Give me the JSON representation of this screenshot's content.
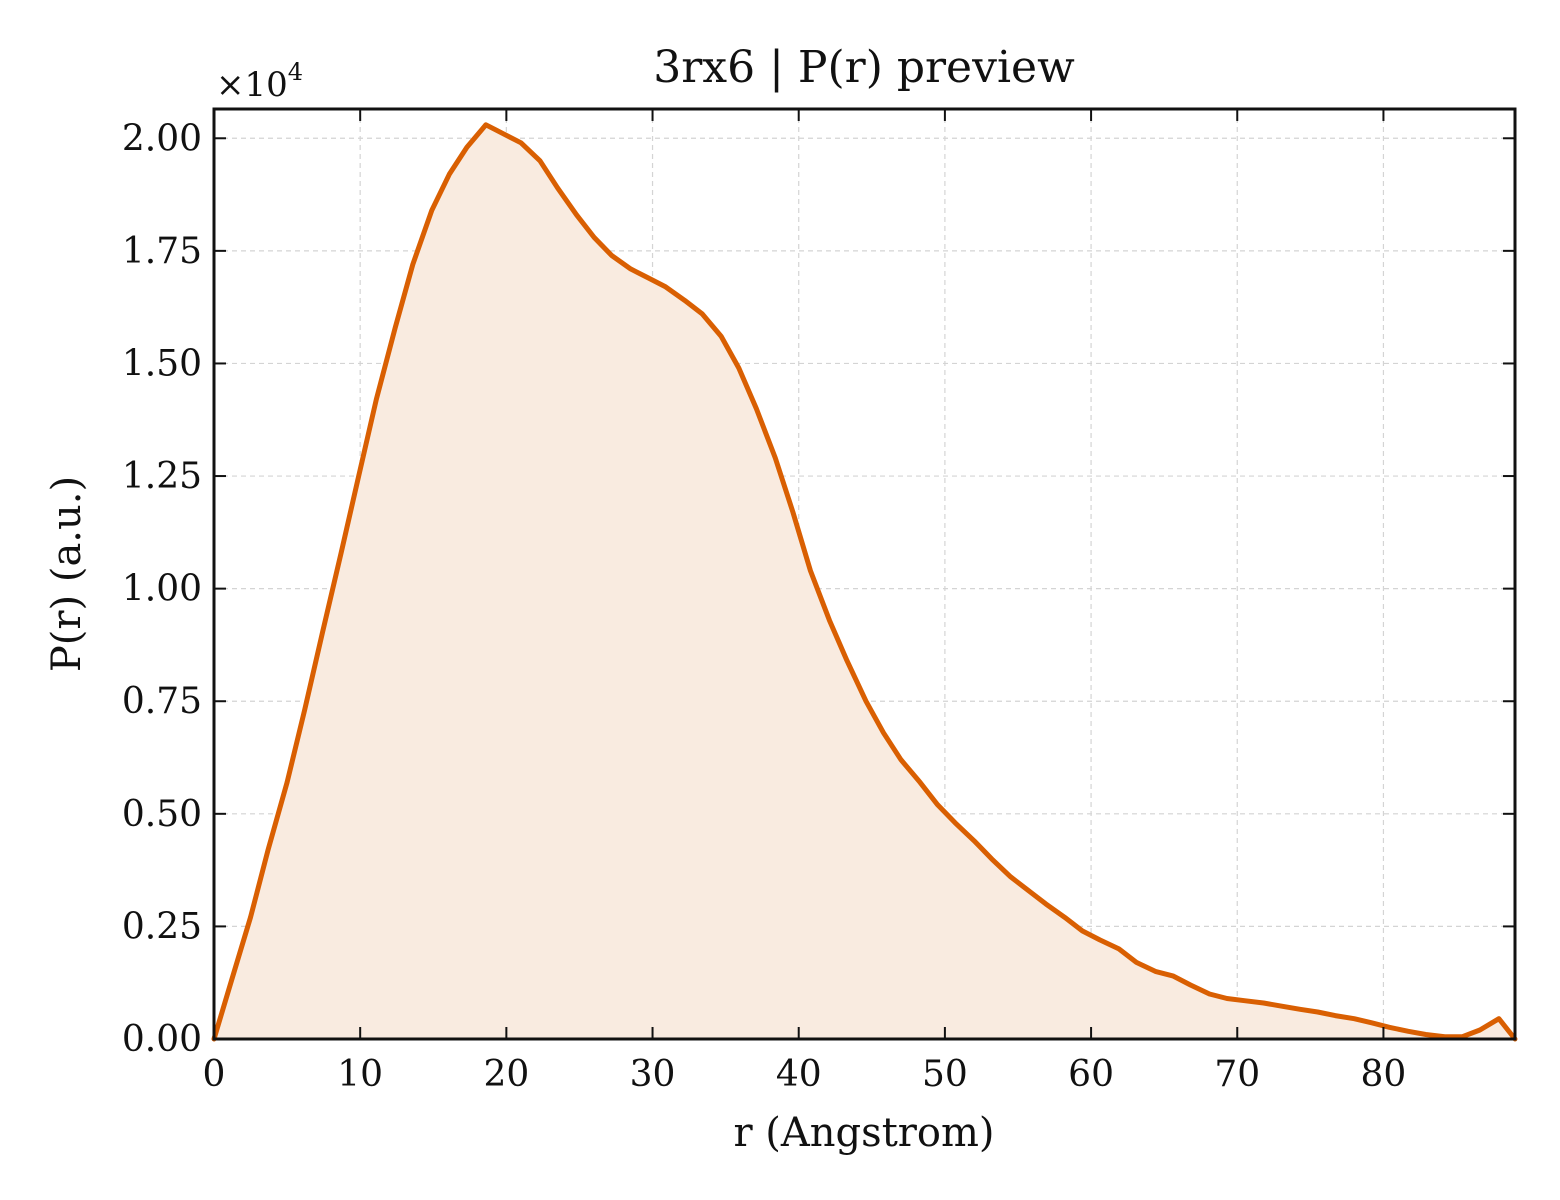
{
  "chart_data": {
    "type": "area",
    "title": "3rx6 | P(r) preview",
    "xlabel": "r (Angstrom)",
    "ylabel": "P(r) (a.u.)",
    "y_offset_text": "×10",
    "y_offset_exponent": "4",
    "xlim": [
      0,
      89
    ],
    "ylim": [
      0,
      2.065
    ],
    "x_ticks": [
      0,
      10,
      20,
      30,
      40,
      50,
      60,
      70,
      80
    ],
    "x_tick_labels": [
      "0",
      "10",
      "20",
      "30",
      "40",
      "50",
      "60",
      "70",
      "80"
    ],
    "y_ticks": [
      0,
      0.25,
      0.5,
      0.75,
      1.0,
      1.25,
      1.5,
      1.75,
      2.0
    ],
    "y_tick_labels": [
      "0.00",
      "0.25",
      "0.50",
      "0.75",
      "1.00",
      "1.25",
      "1.50",
      "1.75",
      "2.00"
    ],
    "grid": true,
    "legend": "none",
    "line_color": "#d95f02",
    "fill_color": "#f9ebe0",
    "series": [
      {
        "x": [
          0,
          1.2,
          2.5,
          3.7,
          5.0,
          6.2,
          7.4,
          8.7,
          9.9,
          11.1,
          12.4,
          13.6,
          14.9,
          16.1,
          17.3,
          18.6,
          19.8,
          21.0,
          22.3,
          23.5,
          24.8,
          26.0,
          27.2,
          28.5,
          29.7,
          30.9,
          32.2,
          33.4,
          34.7,
          35.9,
          37.1,
          38.4,
          39.6,
          40.8,
          42.1,
          43.3,
          44.6,
          45.8,
          47.0,
          48.3,
          49.5,
          50.7,
          52.0,
          53.2,
          54.5,
          55.7,
          56.9,
          58.2,
          59.4,
          60.6,
          61.9,
          63.1,
          64.4,
          65.6,
          66.8,
          68.1,
          69.3,
          70.5,
          71.8,
          73.0,
          74.3,
          75.5,
          76.7,
          78.0,
          79.2,
          80.4,
          81.7,
          82.9,
          84.2,
          85.4,
          86.6,
          87.9,
          89.0
        ],
        "y": [
          0,
          0.13,
          0.27,
          0.42,
          0.57,
          0.73,
          0.9,
          1.08,
          1.25,
          1.42,
          1.58,
          1.72,
          1.84,
          1.92,
          1.98,
          2.03,
          2.01,
          1.99,
          1.95,
          1.89,
          1.83,
          1.78,
          1.74,
          1.71,
          1.69,
          1.67,
          1.64,
          1.61,
          1.56,
          1.49,
          1.4,
          1.29,
          1.17,
          1.04,
          0.93,
          0.84,
          0.75,
          0.68,
          0.62,
          0.57,
          0.52,
          0.48,
          0.44,
          0.4,
          0.36,
          0.33,
          0.3,
          0.27,
          0.24,
          0.22,
          0.2,
          0.17,
          0.15,
          0.14,
          0.12,
          0.1,
          0.09,
          0.085,
          0.08,
          0.073,
          0.066,
          0.06,
          0.052,
          0.045,
          0.036,
          0.026,
          0.017,
          0.01,
          0.005,
          0.005,
          0.02,
          0.045,
          0
        ]
      }
    ]
  }
}
